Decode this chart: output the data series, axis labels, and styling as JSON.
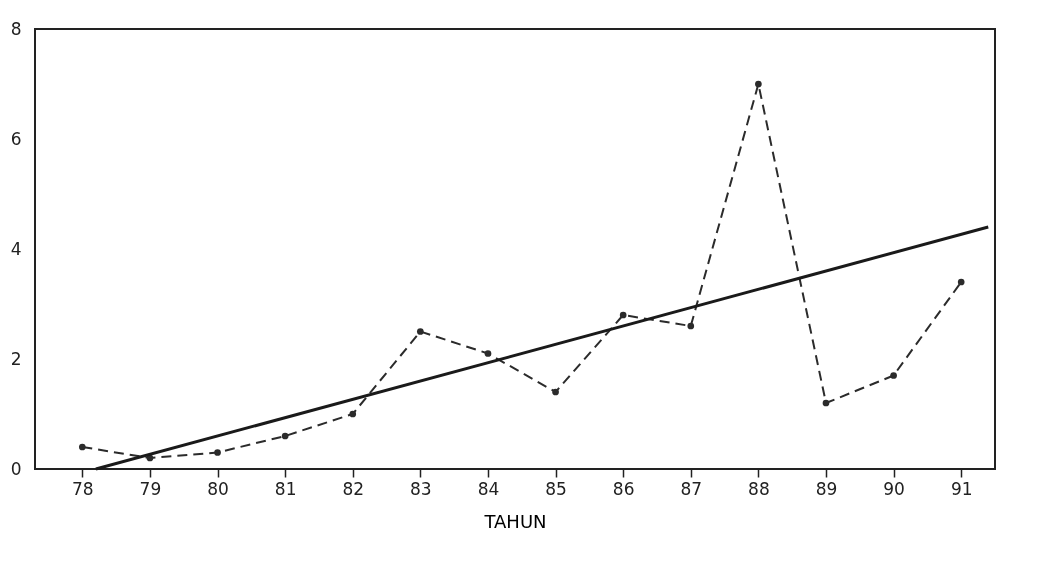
{
  "chart_data": {
    "type": "line",
    "xlabel": "TAHUN",
    "x": [
      78,
      79,
      80,
      81,
      82,
      83,
      84,
      85,
      86,
      87,
      88,
      89,
      90,
      91
    ],
    "series": [
      {
        "color": "#2b2b2b",
        "values": [
          0.4,
          0.2,
          0.3,
          0.6,
          1.0,
          2.5,
          2.1,
          1.4,
          2.8,
          2.6,
          7.0,
          1.2,
          1.7,
          3.4
        ],
        "line_style": "dashed",
        "marker": "circle"
      },
      {
        "type": "line",
        "color": "#1a1a1a",
        "x": [
          78.2,
          91.4
        ],
        "values": [
          0,
          4.4
        ],
        "line_style": "solid",
        "marker": "none"
      }
    ],
    "xlim": [
      77.3,
      91.5
    ],
    "xticks": [
      78,
      79,
      80,
      81,
      82,
      83,
      84,
      85,
      86,
      87,
      88,
      89,
      90,
      91
    ],
    "ylim": [
      0,
      8
    ],
    "yticks": [
      0,
      2,
      4,
      6,
      8
    ],
    "grid": false
  }
}
